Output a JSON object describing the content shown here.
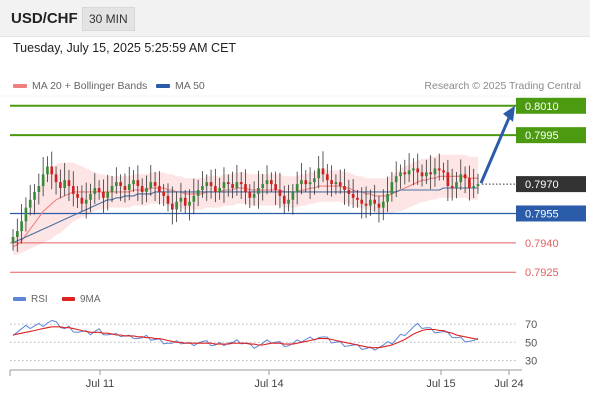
{
  "header": {
    "pair": "USD/CHF",
    "timeframe": "30 MIN"
  },
  "timestamp": "Tuesday, July 15, 2025 5:25:59 AM CET",
  "legend": {
    "ma20": "MA 20 + Bollinger Bands",
    "ma50": "MA 50",
    "rsi": "RSI",
    "ma9": "9MA"
  },
  "copyright": "Research © 2025 Trading Central",
  "colors": {
    "resistance": "#4c9a10",
    "support": "#2a5caa",
    "secondary_support": "#e06060",
    "candle_up": "#3a8a3a",
    "candle_down": "#cc2222",
    "bollinger_fill": "#fde2e2",
    "ma20": "#f08080",
    "ma50": "#4a6fa0",
    "last_price_bg": "#333333",
    "rsi_line": "#5b86d6",
    "ma9_line": "#dd2222",
    "arrow": "#2a5caa"
  },
  "chart_data": [
    {
      "type": "candlestick",
      "x_ticks": [
        "Jul 11",
        "Jul 14",
        "Jul 15",
        "Jul 24"
      ],
      "ylim": [
        0.792,
        0.8015
      ],
      "levels": [
        {
          "value": "0.8010",
          "role": "resistance"
        },
        {
          "value": "0.7995",
          "role": "resistance"
        },
        {
          "value": "0.7970",
          "role": "last_price"
        },
        {
          "value": "0.7955",
          "role": "support"
        },
        {
          "value": "0.7940",
          "role": "secondary_support"
        },
        {
          "value": "0.7925",
          "role": "secondary_support"
        }
      ],
      "close": [
        0.7943,
        0.7946,
        0.7951,
        0.7958,
        0.7962,
        0.7966,
        0.7969,
        0.7975,
        0.7979,
        0.7975,
        0.7971,
        0.7968,
        0.7972,
        0.7969,
        0.7965,
        0.7963,
        0.796,
        0.7962,
        0.7965,
        0.7968,
        0.7966,
        0.7963,
        0.7966,
        0.7969,
        0.7971,
        0.7969,
        0.7967,
        0.797,
        0.7972,
        0.7969,
        0.7966,
        0.7968,
        0.7971,
        0.7969,
        0.7966,
        0.7964,
        0.796,
        0.7957,
        0.7961,
        0.7963,
        0.7959,
        0.7961,
        0.7964,
        0.7967,
        0.7969,
        0.7971,
        0.7969,
        0.7966,
        0.7968,
        0.7971,
        0.797,
        0.7968,
        0.7971,
        0.797,
        0.7966,
        0.7963,
        0.7965,
        0.7968,
        0.797,
        0.7972,
        0.797,
        0.7967,
        0.7964,
        0.796,
        0.7962,
        0.7966,
        0.797,
        0.7972,
        0.797,
        0.7971,
        0.7973,
        0.7978,
        0.7975,
        0.7972,
        0.797,
        0.7971,
        0.7969,
        0.7967,
        0.7965,
        0.7963,
        0.7962,
        0.796,
        0.7959,
        0.7962,
        0.796,
        0.7958,
        0.7961,
        0.7965,
        0.7971,
        0.7974,
        0.7976,
        0.7975,
        0.7977,
        0.7978,
        0.7976,
        0.7974,
        0.7976,
        0.7975,
        0.7978,
        0.7977,
        0.7976,
        0.7969,
        0.7968,
        0.7971,
        0.7975,
        0.7973,
        0.7968,
        0.7969,
        0.797
      ],
      "ma20": [
        0.7938,
        0.7939,
        0.7941,
        0.7944,
        0.7947,
        0.795,
        0.7953,
        0.7956,
        0.7958,
        0.796,
        0.7962,
        0.7963,
        0.7964,
        0.7965,
        0.7966,
        0.7966,
        0.7966,
        0.7966,
        0.7966,
        0.7966,
        0.7966,
        0.7966,
        0.7966,
        0.7966,
        0.7966,
        0.7966,
        0.7966,
        0.7966,
        0.7967,
        0.7967,
        0.7967,
        0.7967,
        0.7968,
        0.7968,
        0.7968,
        0.7968,
        0.7967,
        0.7967,
        0.7966,
        0.7966,
        0.7965,
        0.7965,
        0.7965,
        0.7965,
        0.7965,
        0.7966,
        0.7966,
        0.7966,
        0.7966,
        0.7967,
        0.7967,
        0.7967,
        0.7968,
        0.7968,
        0.7968,
        0.7967,
        0.7967,
        0.7967,
        0.7967,
        0.7967,
        0.7967,
        0.7967,
        0.7967,
        0.7966,
        0.7966,
        0.7966,
        0.7966,
        0.7967,
        0.7967,
        0.7968,
        0.7968,
        0.7969,
        0.7969,
        0.7969,
        0.7969,
        0.7969,
        0.7969,
        0.7968,
        0.7968,
        0.7967,
        0.7966,
        0.7966,
        0.7965,
        0.7965,
        0.7964,
        0.7964,
        0.7964,
        0.7964,
        0.7965,
        0.7966,
        0.7967,
        0.7968,
        0.7969,
        0.797,
        0.7971,
        0.7972,
        0.7972,
        0.7973,
        0.7973,
        0.7974,
        0.7974,
        0.7974,
        0.7974,
        0.7974,
        0.7974,
        0.7974,
        0.7973,
        0.7973,
        0.7973
      ],
      "band_width": [
        0.0004,
        0.0005,
        0.0006,
        0.0008,
        0.001,
        0.0012,
        0.0014,
        0.0016,
        0.0017,
        0.0018,
        0.0018,
        0.0018,
        0.0017,
        0.0016,
        0.0015,
        0.0014,
        0.0013,
        0.0012,
        0.0011,
        0.001,
        0.0009,
        0.0009,
        0.0008,
        0.0008,
        0.0008,
        0.0008,
        0.0008,
        0.0008,
        0.0008,
        0.0008,
        0.0008,
        0.0008,
        0.0008,
        0.0008,
        0.0008,
        0.0008,
        0.0008,
        0.0008,
        0.0008,
        0.0008,
        0.0008,
        0.0008,
        0.0008,
        0.0008,
        0.0008,
        0.0008,
        0.0008,
        0.0008,
        0.0008,
        0.0008,
        0.0008,
        0.0008,
        0.0008,
        0.0008,
        0.0008,
        0.0008,
        0.0008,
        0.0008,
        0.0008,
        0.0008,
        0.0008,
        0.0008,
        0.0008,
        0.0008,
        0.0008,
        0.0008,
        0.0008,
        0.0008,
        0.0008,
        0.0008,
        0.0008,
        0.0008,
        0.0008,
        0.0008,
        0.0008,
        0.0008,
        0.0008,
        0.0008,
        0.0008,
        0.0008,
        0.0008,
        0.0008,
        0.0008,
        0.0008,
        0.0009,
        0.0009,
        0.0009,
        0.0009,
        0.001,
        0.001,
        0.0011,
        0.0011,
        0.0011,
        0.0011,
        0.0011,
        0.0011,
        0.0011,
        0.0011,
        0.0011,
        0.0011,
        0.0011,
        0.0011,
        0.0011,
        0.0011,
        0.0011,
        0.0011,
        0.0011,
        0.0011,
        0.0011
      ],
      "ma50": [
        0.794,
        0.7941,
        0.7942,
        0.7943,
        0.7944,
        0.7945,
        0.7946,
        0.7947,
        0.7948,
        0.7949,
        0.795,
        0.7951,
        0.7952,
        0.7953,
        0.7954,
        0.7955,
        0.7956,
        0.7957,
        0.7958,
        0.7959,
        0.796,
        0.7961,
        0.7962,
        0.7962,
        0.7963,
        0.7963,
        0.7964,
        0.7964,
        0.7964,
        0.7965,
        0.7965,
        0.7965,
        0.7965,
        0.7966,
        0.7966,
        0.7966,
        0.7966,
        0.7966,
        0.7966,
        0.7966,
        0.7966,
        0.7966,
        0.7966,
        0.7966,
        0.7966,
        0.7966,
        0.7966,
        0.7966,
        0.7966,
        0.7966,
        0.7966,
        0.7966,
        0.7966,
        0.7966,
        0.7966,
        0.7966,
        0.7966,
        0.7966,
        0.7966,
        0.7966,
        0.7966,
        0.7966,
        0.7966,
        0.7966,
        0.7966,
        0.7966,
        0.7966,
        0.7966,
        0.7966,
        0.7966,
        0.7966,
        0.7966,
        0.7966,
        0.7966,
        0.7966,
        0.7966,
        0.7966,
        0.7966,
        0.7966,
        0.7966,
        0.7966,
        0.7966,
        0.7966,
        0.7966,
        0.7966,
        0.7966,
        0.7966,
        0.7966,
        0.7966,
        0.7966,
        0.7967,
        0.7967,
        0.7967,
        0.7967,
        0.7967,
        0.7967,
        0.7967,
        0.7967,
        0.7967,
        0.7967,
        0.7968,
        0.7968,
        0.7968,
        0.7968,
        0.7968,
        0.7968,
        0.7968,
        0.7968,
        0.7968
      ],
      "projection": {
        "from": 0.797,
        "to": 0.801
      }
    },
    {
      "type": "line",
      "ylim": [
        25,
        80
      ],
      "y_ticks": [
        "70",
        "50",
        "30"
      ],
      "series": [
        {
          "name": "RSI",
          "values": [
            60,
            62,
            64,
            66,
            67,
            68,
            69,
            70,
            72,
            73,
            70,
            68,
            65,
            66,
            64,
            62,
            61,
            60,
            60,
            62,
            63,
            61,
            59,
            58,
            57,
            58,
            57,
            56,
            57,
            55,
            54,
            55,
            54,
            53,
            52,
            51,
            50,
            48,
            49,
            50,
            49,
            48,
            49,
            50,
            50,
            49,
            48,
            47,
            48,
            49,
            50,
            49,
            50,
            50,
            49,
            47,
            46,
            47,
            48,
            50,
            51,
            50,
            49,
            48,
            47,
            48,
            50,
            52,
            53,
            54,
            55,
            56,
            55,
            53,
            51,
            50,
            49,
            48,
            47,
            46,
            45,
            44,
            43,
            43,
            44,
            45,
            46,
            48,
            50,
            53,
            57,
            60,
            63,
            66,
            68,
            67,
            66,
            64,
            63,
            62,
            61,
            58,
            57,
            55,
            54,
            53,
            52,
            51,
            52
          ]
        },
        {
          "name": "9MA",
          "values": [
            58,
            59,
            60,
            61,
            62,
            63,
            64,
            65,
            66,
            67,
            67,
            67,
            66,
            66,
            65,
            64,
            63,
            62,
            61,
            61,
            61,
            60,
            60,
            59,
            58,
            58,
            57,
            57,
            57,
            56,
            56,
            55,
            55,
            54,
            54,
            53,
            52,
            51,
            50,
            50,
            49,
            49,
            49,
            49,
            49,
            49,
            49,
            48,
            48,
            48,
            48,
            49,
            49,
            49,
            49,
            48,
            48,
            47,
            47,
            48,
            49,
            49,
            49,
            48,
            48,
            48,
            49,
            50,
            51,
            52,
            53,
            54,
            54,
            54,
            53,
            52,
            51,
            50,
            49,
            48,
            47,
            46,
            45,
            44,
            44,
            44,
            45,
            46,
            47,
            49,
            51,
            53,
            56,
            59,
            61,
            63,
            64,
            64,
            64,
            63,
            63,
            61,
            60,
            58,
            57,
            56,
            55,
            54,
            53
          ]
        }
      ]
    }
  ]
}
